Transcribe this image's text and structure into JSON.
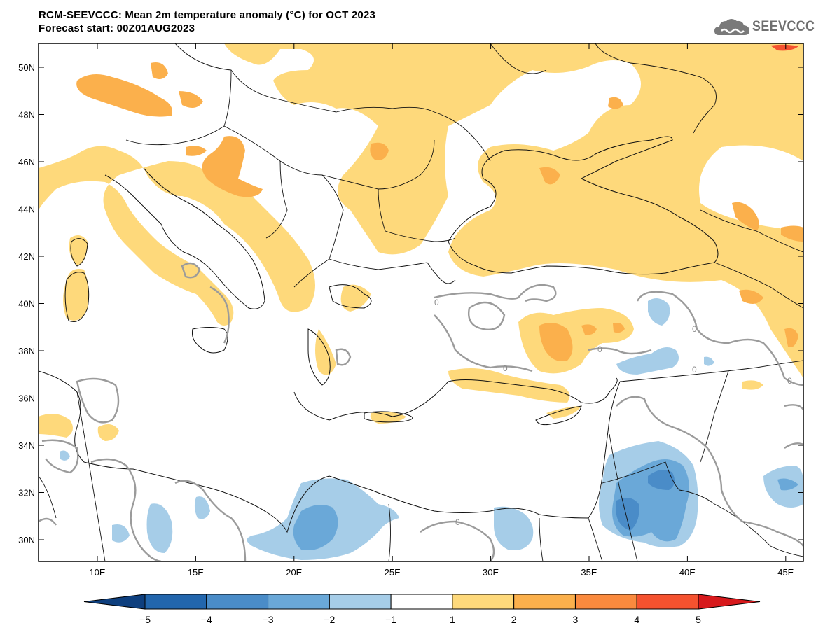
{
  "title": {
    "line1": "RCM-SEEVCCC: Mean 2m temperature anomaly (°C) for OCT 2023",
    "line2": "Forecast start: 00Z01AUG2023"
  },
  "logo": {
    "text": "SEEVCCC",
    "icon": "cloud-logo-icon"
  },
  "map": {
    "lat_labels": [
      "50N",
      "48N",
      "46N",
      "44N",
      "42N",
      "40N",
      "38N",
      "36N",
      "34N",
      "32N",
      "30N"
    ],
    "lon_labels": [
      "10E",
      "15E",
      "20E",
      "25E",
      "30E",
      "35E",
      "40E",
      "45E"
    ],
    "contour_labels": [
      "0",
      "0",
      "0",
      "0",
      "0",
      "0",
      "0"
    ]
  },
  "colorbar": {
    "labels": [
      "−5",
      "−4",
      "−3",
      "−2",
      "−1",
      "1",
      "2",
      "3",
      "4",
      "5"
    ],
    "colors": [
      "#0e3f7e",
      "#2266ad",
      "#4a8cc8",
      "#6aa8d8",
      "#a6cde8",
      "#ffffff",
      "#fed97b",
      "#fbb04c",
      "#fa8a3e",
      "#f5522f",
      "#d7191c"
    ]
  },
  "chart_data": {
    "type": "heatmap",
    "variable": "Mean 2m temperature anomaly (°C)",
    "period": "OCT 2023",
    "forecast_start": "00Z01AUG2023",
    "lon_range": [
      7,
      46
    ],
    "lat_range": [
      29,
      51
    ],
    "levels": [
      -5,
      -4,
      -3,
      -2,
      -1,
      1,
      2,
      3,
      4,
      5
    ]
  }
}
